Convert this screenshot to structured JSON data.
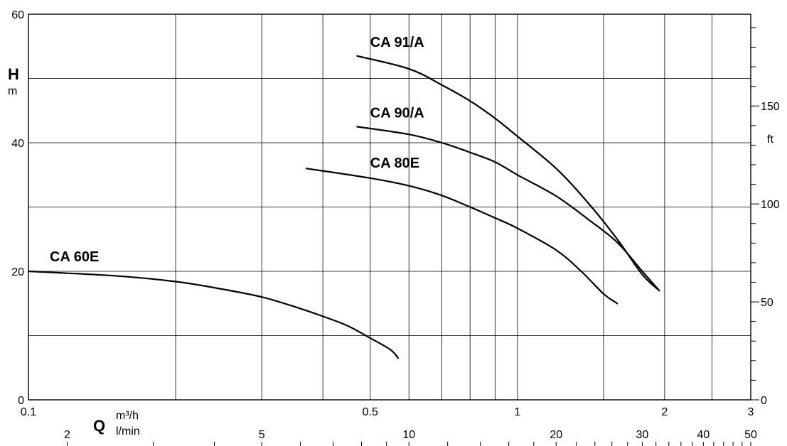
{
  "chart_data": {
    "type": "line",
    "title": "",
    "x_scale": "log",
    "xlim": [
      0.1,
      3
    ],
    "ylim": [
      0,
      60
    ],
    "grid": true,
    "xlabel": {
      "symbol": "Q",
      "unit_top": "m³/h",
      "unit_bottom": "l/min"
    },
    "ylabel": {
      "symbol": "H",
      "unit": "m"
    },
    "y2label": {
      "unit": "ft"
    },
    "x_ticks": [
      {
        "value": 0.1,
        "label": "0.1"
      },
      {
        "value": 0.5,
        "label": "0.5"
      },
      {
        "value": 1,
        "label": "1"
      },
      {
        "value": 2,
        "label": "2"
      },
      {
        "value": 3,
        "label": "3"
      }
    ],
    "x_minor_gridlines": [
      0.2,
      0.3,
      0.4,
      0.6,
      0.7,
      0.8,
      0.9,
      1.5,
      2.5
    ],
    "x2_ticks": [
      {
        "value": 2,
        "label": "2"
      },
      {
        "value": 5,
        "label": "5"
      },
      {
        "value": 10,
        "label": "10"
      },
      {
        "value": 20,
        "label": "20"
      },
      {
        "value": 30,
        "label": "30"
      },
      {
        "value": 40,
        "label": "40"
      },
      {
        "value": 50,
        "label": "50"
      }
    ],
    "x2_minor_ticks": [
      3,
      4,
      6,
      7,
      8,
      9,
      12,
      14,
      16,
      18,
      22,
      24,
      26,
      28,
      32,
      34,
      36,
      38,
      42,
      44,
      46,
      48
    ],
    "y_ticks": [
      {
        "value": 0,
        "label": "0"
      },
      {
        "value": 20,
        "label": "20"
      },
      {
        "value": 40,
        "label": "40"
      },
      {
        "value": 60,
        "label": "60"
      }
    ],
    "y_gridlines": [
      10,
      20,
      30,
      40,
      50
    ],
    "y2_ticks": [
      {
        "value": 0,
        "label": "0"
      },
      {
        "value": 50,
        "label": "50"
      },
      {
        "value": 100,
        "label": "100"
      },
      {
        "value": 150,
        "label": "150"
      }
    ],
    "y2_minor_step": 10,
    "series": [
      {
        "name": "CA 60E",
        "points": [
          [
            0.1,
            20
          ],
          [
            0.15,
            19.3
          ],
          [
            0.2,
            18.4
          ],
          [
            0.25,
            17.2
          ],
          [
            0.3,
            16.0
          ],
          [
            0.35,
            14.5
          ],
          [
            0.4,
            13.0
          ],
          [
            0.45,
            11.5
          ],
          [
            0.5,
            9.6
          ],
          [
            0.55,
            7.8
          ],
          [
            0.57,
            6.5
          ]
        ]
      },
      {
        "name": "CA 80E",
        "points": [
          [
            0.37,
            36
          ],
          [
            0.5,
            34.5
          ],
          [
            0.6,
            33.3
          ],
          [
            0.7,
            31.8
          ],
          [
            0.8,
            30.0
          ],
          [
            0.9,
            28.3
          ],
          [
            1.0,
            26.7
          ],
          [
            1.2,
            23.3
          ],
          [
            1.35,
            20.0
          ],
          [
            1.5,
            16.5
          ],
          [
            1.6,
            15.0
          ]
        ]
      },
      {
        "name": "CA 90/A",
        "points": [
          [
            0.47,
            42.5
          ],
          [
            0.6,
            41.3
          ],
          [
            0.7,
            40.0
          ],
          [
            0.8,
            38.5
          ],
          [
            0.9,
            37.0
          ],
          [
            1.0,
            35.0
          ],
          [
            1.2,
            31.7
          ],
          [
            1.4,
            28.0
          ],
          [
            1.6,
            24.5
          ],
          [
            1.8,
            20.0
          ],
          [
            1.95,
            17.0
          ]
        ]
      },
      {
        "name": "CA 91/A",
        "points": [
          [
            0.47,
            53.5
          ],
          [
            0.6,
            51.5
          ],
          [
            0.7,
            49.0
          ],
          [
            0.8,
            46.5
          ],
          [
            0.9,
            43.8
          ],
          [
            1.0,
            41.0
          ],
          [
            1.2,
            36.0
          ],
          [
            1.4,
            30.5
          ],
          [
            1.6,
            25.0
          ],
          [
            1.8,
            19.5
          ],
          [
            1.95,
            17.0
          ]
        ]
      }
    ]
  }
}
